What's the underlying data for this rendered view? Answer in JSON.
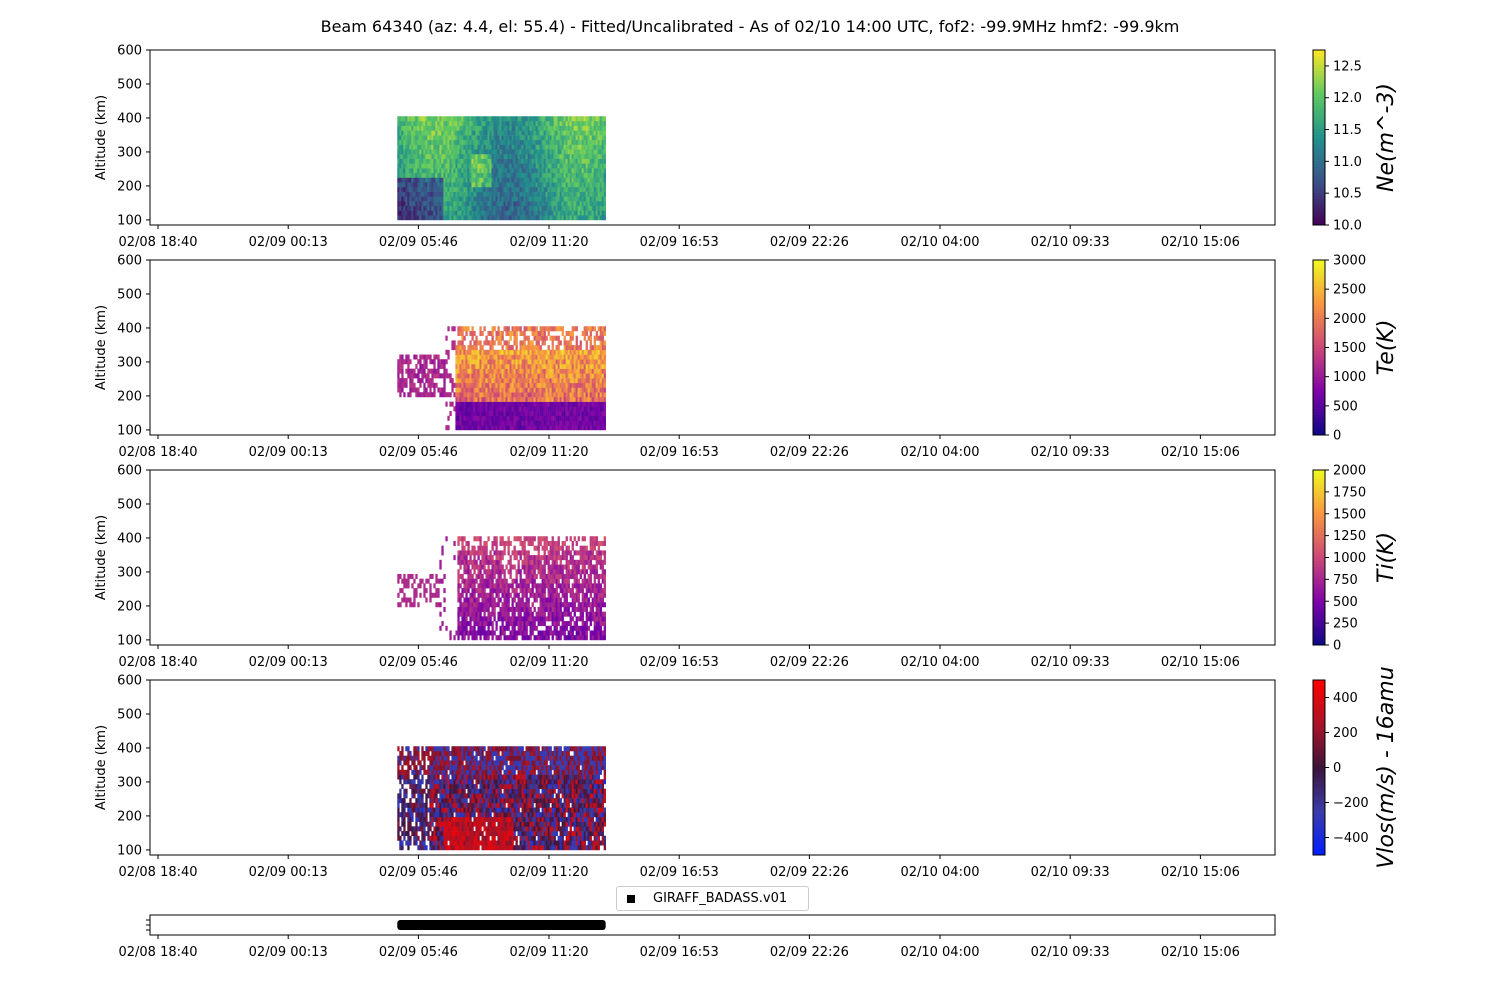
{
  "title": "Beam 64340 (az: 4.4, el: 55.4) - Fitted/Uncalibrated - As of 02/10 14:00 UTC, fof2: -99.9MHz  hmf2: -99.9km",
  "colors": {
    "ne_colormap": "viridis",
    "te_colormap": "plasma",
    "ti_colormap": "plasma",
    "vlos_colormap": "bwr-dark",
    "coverage_bar": "#000000"
  },
  "chart_data": [
    {
      "type": "heatmap",
      "name": "Ne",
      "ylabel": "Altitude (km)",
      "yticks": [
        100,
        200,
        300,
        400,
        500,
        600
      ],
      "ylim": [
        85,
        600
      ],
      "xticks": [
        "02/08 18:40",
        "02/09 00:13",
        "02/09 05:46",
        "02/09 11:20",
        "02/09 16:53",
        "02/09 22:26",
        "02/10 04:00",
        "02/10 09:33",
        "02/10 15:06"
      ],
      "colorbar_label": "Ne(m^-3)",
      "colorbar_ticks": [
        "10.0",
        "10.5",
        "11.0",
        "11.5",
        "12.0",
        "12.5"
      ],
      "clim": [
        10.0,
        12.75
      ],
      "data_time_range": [
        "02/09 04:52",
        "02/09 13:45"
      ],
      "data_alt_range": [
        100,
        405
      ]
    },
    {
      "type": "heatmap",
      "name": "Te",
      "ylabel": "Altitude (km)",
      "yticks": [
        100,
        200,
        300,
        400,
        500,
        600
      ],
      "ylim": [
        85,
        600
      ],
      "xticks": [
        "02/08 18:40",
        "02/09 00:13",
        "02/09 05:46",
        "02/09 11:20",
        "02/09 16:53",
        "02/09 22:26",
        "02/10 04:00",
        "02/10 09:33",
        "02/10 15:06"
      ],
      "colorbar_label": "Te(K)",
      "colorbar_ticks": [
        "0",
        "500",
        "1000",
        "1500",
        "2000",
        "2500",
        "3000"
      ],
      "clim": [
        0,
        3000
      ],
      "data_time_range": [
        "02/09 04:52",
        "02/09 13:45"
      ],
      "data_alt_range": [
        100,
        405
      ]
    },
    {
      "type": "heatmap",
      "name": "Ti",
      "ylabel": "Altitude (km)",
      "yticks": [
        100,
        200,
        300,
        400,
        500,
        600
      ],
      "ylim": [
        85,
        600
      ],
      "xticks": [
        "02/08 18:40",
        "02/09 00:13",
        "02/09 05:46",
        "02/09 11:20",
        "02/09 16:53",
        "02/09 22:26",
        "02/10 04:00",
        "02/10 09:33",
        "02/10 15:06"
      ],
      "colorbar_label": "Ti(K)",
      "colorbar_ticks": [
        "0",
        "250",
        "500",
        "750",
        "1000",
        "1250",
        "1500",
        "1750",
        "2000"
      ],
      "clim": [
        0,
        2000
      ],
      "data_time_range": [
        "02/09 04:52",
        "02/09 13:45"
      ],
      "data_alt_range": [
        100,
        405
      ]
    },
    {
      "type": "heatmap",
      "name": "Vlos",
      "ylabel": "Altitude (km)",
      "yticks": [
        100,
        200,
        300,
        400,
        500,
        600
      ],
      "ylim": [
        85,
        600
      ],
      "xticks": [
        "02/08 18:40",
        "02/09 00:13",
        "02/09 05:46",
        "02/09 11:20",
        "02/09 16:53",
        "02/09 22:26",
        "02/10 04:00",
        "02/10 09:33",
        "02/10 15:06"
      ],
      "colorbar_label": "Vlos(m/s) - 16amu",
      "colorbar_ticks": [
        "400",
        "200",
        "0",
        "−200",
        "−400"
      ],
      "clim": [
        -500,
        500
      ],
      "data_time_range": [
        "02/09 04:52",
        "02/09 13:45"
      ],
      "data_alt_range": [
        100,
        405
      ]
    },
    {
      "type": "bar",
      "name": "coverage",
      "legend": [
        "GIRAFF_BADASS.v01"
      ],
      "legend_position": "top-center",
      "xticks": [
        "02/08 18:40",
        "02/09 00:13",
        "02/09 05:46",
        "02/09 11:20",
        "02/09 16:53",
        "02/09 22:26",
        "02/10 04:00",
        "02/10 09:33",
        "02/10 15:06"
      ],
      "coverage_range": [
        "02/09 04:52",
        "02/09 13:45"
      ]
    }
  ]
}
